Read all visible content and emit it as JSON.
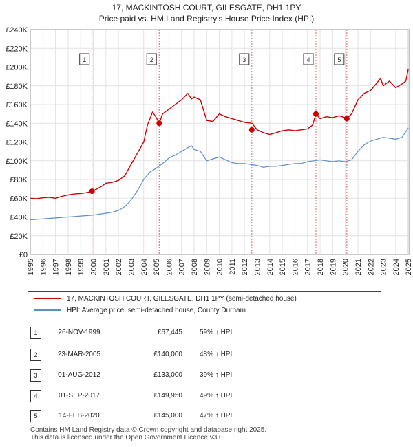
{
  "title_line1": "17, MACKINTOSH COURT, GILESGATE, DH1 1PY",
  "title_line2": "Price paid vs. HM Land Registry's House Price Index (HPI)",
  "chart_data": {
    "type": "line",
    "x_range": [
      1995.0,
      2025.1
    ],
    "ylim": [
      0,
      240000
    ],
    "y_ticks": [
      0,
      20000,
      40000,
      60000,
      80000,
      100000,
      120000,
      140000,
      160000,
      180000,
      200000,
      220000,
      240000
    ],
    "y_tick_labels": [
      "£0",
      "£20K",
      "£40K",
      "£60K",
      "£80K",
      "£100K",
      "£120K",
      "£140K",
      "£160K",
      "£180K",
      "£200K",
      "£220K",
      "£240K"
    ],
    "x_ticks": [
      1995,
      1996,
      1997,
      1998,
      1999,
      2000,
      2001,
      2002,
      2003,
      2004,
      2005,
      2006,
      2007,
      2008,
      2009,
      2010,
      2011,
      2012,
      2013,
      2014,
      2015,
      2016,
      2017,
      2018,
      2019,
      2020,
      2021,
      2022,
      2023,
      2024,
      2025
    ],
    "x_tick_labels": [
      "1995",
      "1996",
      "1997",
      "1998",
      "1999",
      "2000",
      "2001",
      "2002",
      "2003",
      "2004",
      "2005",
      "2006",
      "2007",
      "2008",
      "2009",
      "2010",
      "2011",
      "2012",
      "2013",
      "2014",
      "2015",
      "2016",
      "2017",
      "2018",
      "2019",
      "2020",
      "2021",
      "2022",
      "2023",
      "2024",
      "2025"
    ],
    "series": [
      {
        "name": "17, MACKINTOSH COURT, GILESGATE, DH1 1PY (semi-detached house)",
        "color": "#cc0000",
        "x": [
          1995.0,
          1995.5,
          1996.0,
          1996.5,
          1997.0,
          1997.5,
          1998.0,
          1998.5,
          1999.0,
          1999.5,
          1999.9,
          2000.3,
          2000.7,
          2001.0,
          2001.5,
          2002.0,
          2002.5,
          2003.0,
          2003.5,
          2004.0,
          2004.3,
          2004.7,
          2005.0,
          2005.23,
          2005.5,
          2006.0,
          2006.5,
          2007.0,
          2007.5,
          2007.8,
          2008.0,
          2008.5,
          2009.0,
          2009.5,
          2010.0,
          2010.5,
          2011.0,
          2011.5,
          2012.0,
          2012.6,
          2013.0,
          2013.5,
          2014.0,
          2014.5,
          2015.0,
          2015.5,
          2016.0,
          2016.5,
          2017.0,
          2017.4,
          2017.67,
          2018.0,
          2018.5,
          2019.0,
          2019.5,
          2020.0,
          2020.12,
          2020.5,
          2021.0,
          2021.5,
          2022.0,
          2022.5,
          2022.8,
          2023.0,
          2023.5,
          2024.0,
          2024.5,
          2024.8,
          2025.0
        ],
        "y": [
          60000,
          59500,
          60500,
          61000,
          60000,
          62000,
          63500,
          64500,
          65000,
          66000,
          67445,
          70000,
          73000,
          76000,
          77000,
          79000,
          84000,
          96000,
          108000,
          120000,
          138000,
          152000,
          146000,
          140000,
          150000,
          155000,
          160000,
          165000,
          172000,
          166000,
          168000,
          165000,
          143000,
          142000,
          150000,
          147000,
          145000,
          143000,
          141000,
          140000,
          133000,
          130000,
          128000,
          130000,
          132000,
          133000,
          132000,
          133000,
          134000,
          138000,
          149950,
          145000,
          147000,
          146000,
          148000,
          146000,
          145000,
          150000,
          165000,
          172000,
          175000,
          183000,
          188000,
          180000,
          185000,
          178000,
          182000,
          185000,
          198000
        ]
      },
      {
        "name": "HPI: Average price, semi-detached house, County Durham",
        "color": "#5b8fc7",
        "x": [
          1995.0,
          1995.5,
          1996.0,
          1996.5,
          1997.0,
          1997.5,
          1998.0,
          1998.5,
          1999.0,
          1999.5,
          2000.0,
          2000.5,
          2001.0,
          2001.5,
          2002.0,
          2002.5,
          2003.0,
          2003.5,
          2004.0,
          2004.5,
          2005.0,
          2005.5,
          2006.0,
          2006.5,
          2007.0,
          2007.5,
          2007.8,
          2008.0,
          2008.5,
          2009.0,
          2009.5,
          2010.0,
          2010.5,
          2011.0,
          2011.5,
          2012.0,
          2012.5,
          2013.0,
          2013.5,
          2014.0,
          2014.5,
          2015.0,
          2015.5,
          2016.0,
          2016.5,
          2017.0,
          2017.5,
          2018.0,
          2018.5,
          2019.0,
          2019.5,
          2020.0,
          2020.5,
          2021.0,
          2021.5,
          2022.0,
          2022.5,
          2023.0,
          2023.5,
          2024.0,
          2024.5,
          2025.0
        ],
        "y": [
          37000,
          37500,
          38000,
          38500,
          39000,
          39500,
          40000,
          40500,
          41000,
          41500,
          42000,
          43000,
          44000,
          45000,
          47000,
          51000,
          58000,
          68000,
          80000,
          88000,
          92000,
          97000,
          103000,
          106000,
          110000,
          114000,
          116000,
          112000,
          110000,
          100000,
          102000,
          104000,
          101000,
          98000,
          97000,
          97000,
          96000,
          95000,
          93000,
          94000,
          94000,
          95000,
          96000,
          97000,
          97000,
          99000,
          100000,
          101000,
          100000,
          99000,
          100000,
          99000,
          101000,
          110000,
          117000,
          121000,
          123000,
          125000,
          124000,
          123000,
          125000,
          135000
        ]
      }
    ],
    "sales": [
      {
        "label": "1",
        "x": 1999.9,
        "y": 67445
      },
      {
        "label": "2",
        "x": 2005.23,
        "y": 140000
      },
      {
        "label": "3",
        "x": 2012.58,
        "y": 133000
      },
      {
        "label": "4",
        "x": 2017.67,
        "y": 149950
      },
      {
        "label": "5",
        "x": 2020.12,
        "y": 145000
      }
    ]
  },
  "legend": {
    "property": "17, MACKINTOSH COURT, GILESGATE, DH1 1PY (semi-detached house)",
    "hpi": "HPI: Average price, semi-detached house, County Durham"
  },
  "table": [
    {
      "num": "1",
      "date": "26-NOV-1999",
      "price": "£67,445",
      "hpi": "59% ↑ HPI"
    },
    {
      "num": "2",
      "date": "23-MAR-2005",
      "price": "£140,000",
      "hpi": "48% ↑ HPI"
    },
    {
      "num": "3",
      "date": "01-AUG-2012",
      "price": "£133,000",
      "hpi": "39% ↑ HPI"
    },
    {
      "num": "4",
      "date": "01-SEP-2017",
      "price": "£149,950",
      "hpi": "49% ↑ HPI"
    },
    {
      "num": "5",
      "date": "14-FEB-2020",
      "price": "£145,000",
      "hpi": "47% ↑ HPI"
    }
  ],
  "footer": {
    "line1": "Contains HM Land Registry data © Crown copyright and database right 2025.",
    "line2": "This data is licensed under the Open Government Licence v3.0."
  },
  "colors": {
    "property_line": "#cc0000",
    "hpi_line": "#5b8fc7",
    "sale_marker": "#cc0000",
    "vline": "#e06060",
    "shade": "#dde6f3"
  }
}
